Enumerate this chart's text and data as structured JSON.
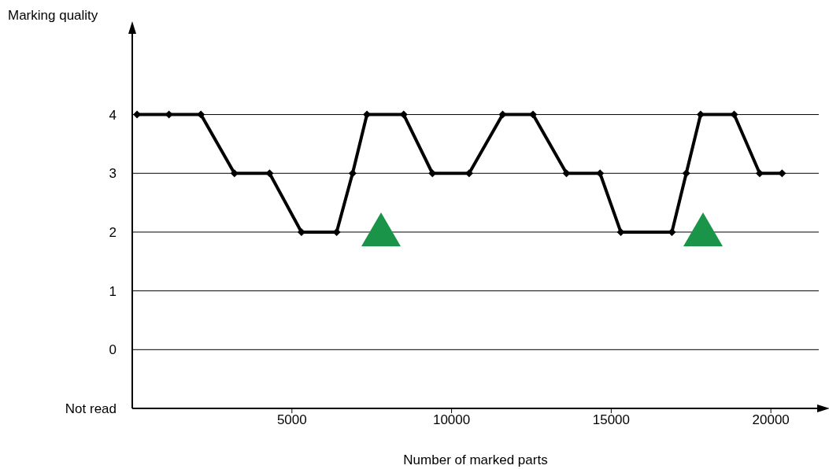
{
  "chart_data": {
    "type": "line",
    "xlabel": "Number of marked parts",
    "ylabel": "Marking quality",
    "xlim": [
      0,
      21500
    ],
    "xticks": [
      5000,
      10000,
      15000,
      20000
    ],
    "ylim": [
      -1,
      5.4
    ],
    "yticks": [
      {
        "value": -1,
        "label": "Not read"
      },
      0,
      1,
      2,
      3,
      4
    ],
    "grid": "y",
    "line_style": "solid",
    "series": [
      {
        "color": "#000000",
        "marker": "diamond",
        "x": [
          150,
          1150,
          2150,
          3200,
          4300,
          5300,
          6400,
          6900,
          7350,
          8500,
          9400,
          10550,
          11600,
          12550,
          13600,
          14650,
          15300,
          16900,
          17350,
          17800,
          18850,
          19650,
          20350
        ],
        "values": [
          4,
          4,
          4,
          3,
          3,
          2,
          2,
          3,
          4,
          4,
          3,
          3,
          4,
          4,
          3,
          3,
          2,
          2,
          3,
          4,
          4,
          3,
          3
        ]
      }
    ]
  }
}
